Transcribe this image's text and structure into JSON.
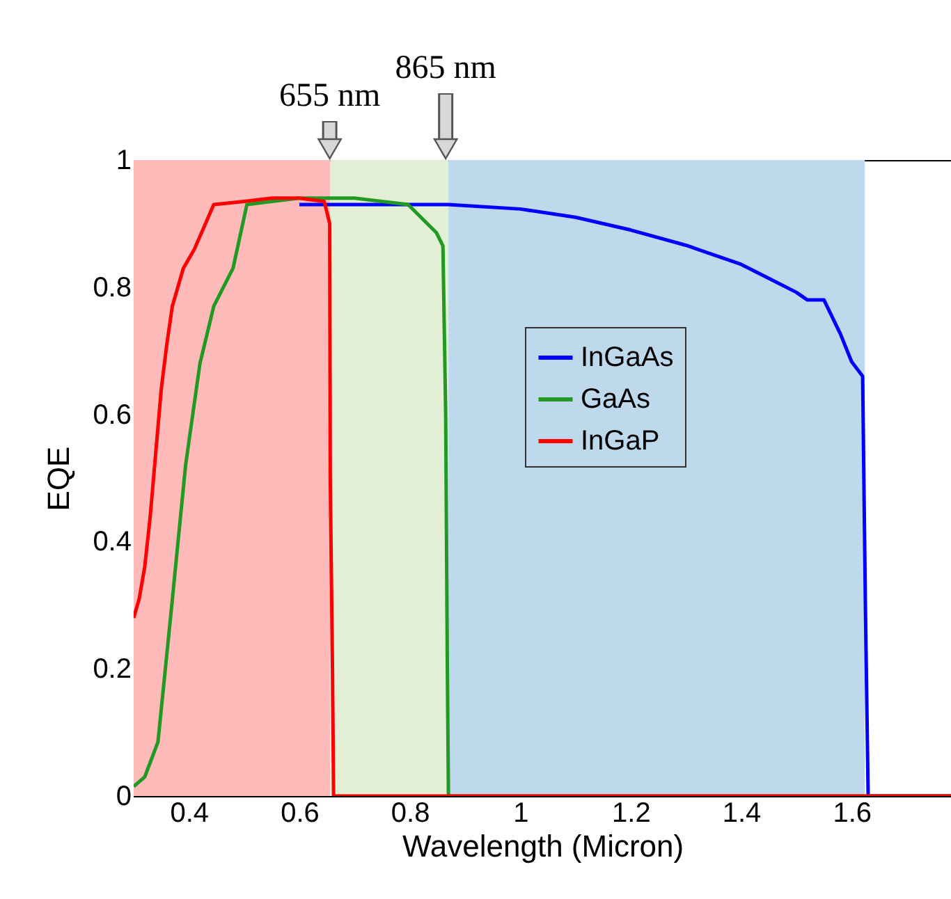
{
  "chart_data": {
    "type": "line",
    "xlabel": "Wavelength (Micron)",
    "ylabel": "EQE",
    "xlim": [
      0.3,
      1.78
    ],
    "ylim": [
      0,
      1
    ],
    "xticks": [
      0.4,
      0.6,
      0.8,
      1,
      1.2,
      1.4,
      1.6
    ],
    "yticks": [
      0,
      0.2,
      0.4,
      0.6,
      0.8,
      1
    ],
    "grid": false,
    "legend": "right",
    "line_style": "solid",
    "marker": "none",
    "bands": [
      {
        "axis": "x",
        "from": 0.3,
        "to": 0.656,
        "color": "#ffbaba"
      },
      {
        "axis": "x",
        "from": 0.656,
        "to": 0.87,
        "color": "#e2efd5"
      },
      {
        "axis": "x",
        "from": 0.87,
        "to": 1.624,
        "color": "#bed8ec"
      }
    ],
    "annotations": [
      {
        "text": "655 nm",
        "x": 0.655,
        "y": 1
      },
      {
        "text": "865 nm",
        "x": 0.865,
        "y": 1
      }
    ],
    "series": [
      {
        "name": "InGaAs",
        "color": "#0000ff",
        "x": [
          0.6,
          0.7,
          0.8,
          0.87,
          1.0,
          1.1,
          1.2,
          1.3,
          1.4,
          1.45,
          1.5,
          1.52,
          1.55,
          1.58,
          1.6,
          1.62,
          1.625,
          1.63,
          1.78
        ],
        "values": [
          0.93,
          0.93,
          0.93,
          0.93,
          0.923,
          0.91,
          0.89,
          0.866,
          0.836,
          0.814,
          0.792,
          0.78,
          0.78,
          0.726,
          0.683,
          0.66,
          0.3,
          0,
          0
        ]
      },
      {
        "name": "GaAs",
        "color": "#229922",
        "x": [
          0.3,
          0.32,
          0.344,
          0.369,
          0.394,
          0.42,
          0.445,
          0.48,
          0.505,
          0.55,
          0.6,
          0.7,
          0.797,
          0.848,
          0.86,
          0.865,
          0.868,
          0.87,
          1.78
        ],
        "values": [
          0.015,
          0.03,
          0.085,
          0.3,
          0.52,
          0.68,
          0.77,
          0.83,
          0.93,
          0.935,
          0.94,
          0.94,
          0.93,
          0.886,
          0.865,
          0.6,
          0.2,
          0,
          0
        ]
      },
      {
        "name": "InGaP",
        "color": "#ff0000",
        "x": [
          0.3,
          0.31,
          0.32,
          0.33,
          0.34,
          0.35,
          0.36,
          0.37,
          0.38,
          0.39,
          0.41,
          0.43,
          0.445,
          0.5,
          0.55,
          0.6,
          0.645,
          0.655,
          0.656,
          0.66,
          0.662,
          1.78
        ],
        "values": [
          0.28,
          0.31,
          0.36,
          0.44,
          0.54,
          0.64,
          0.71,
          0.77,
          0.8,
          0.83,
          0.86,
          0.9,
          0.93,
          0.935,
          0.94,
          0.94,
          0.935,
          0.9,
          0.5,
          0.2,
          0,
          0
        ]
      }
    ]
  }
}
